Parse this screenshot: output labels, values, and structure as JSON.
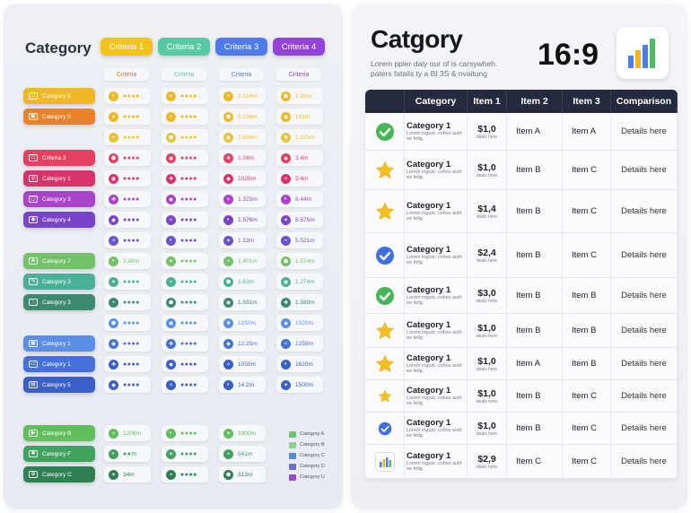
{
  "left": {
    "title": "Category",
    "columns": [
      {
        "label": "Criteria 1",
        "color": "#f2c21f",
        "sub": "Criteria"
      },
      {
        "label": "Criteria 2",
        "color": "#58c9a2",
        "sub": "Criteria"
      },
      {
        "label": "Criteria 3",
        "color": "#4f7be6",
        "sub": "Criteria"
      },
      {
        "label": "Criteria 4",
        "color": "#9145d6",
        "sub": "Criteria"
      }
    ],
    "categories": [
      {
        "label": "Category 5",
        "color": "#f1b825",
        "icon": "□"
      },
      {
        "label": "Category 0",
        "color": "#e8822c",
        "icon": "▣"
      },
      {
        "label": "Criteria 3",
        "color": "#e2425f",
        "icon": "□"
      },
      {
        "label": "Category 1",
        "color": "#d8336a",
        "icon": "◎"
      },
      {
        "label": "Category 3",
        "color": "#a844c8",
        "icon": "▢"
      },
      {
        "label": "Category 4",
        "color": "#7a44c9",
        "icon": "◉"
      },
      {
        "label": "Category 7",
        "color": "#72c267",
        "icon": "♣"
      },
      {
        "label": "Category 3",
        "color": "#4bb196",
        "icon": "✎"
      },
      {
        "label": "Category 3",
        "color": "#3f8a6e",
        "icon": "◌"
      },
      {
        "label": "Category 1",
        "color": "#5b8fe6",
        "icon": "▣"
      },
      {
        "label": "Category 1",
        "color": "#4670da",
        "icon": "▭"
      },
      {
        "label": "Category 5",
        "color": "#3a5fc6",
        "icon": "▤"
      },
      {
        "label": "Category B",
        "color": "#5fbf5a",
        "icon": "▶"
      },
      {
        "label": "Category F",
        "color": "#3fa35f",
        "icon": "✱"
      },
      {
        "label": "Category C",
        "color": "#2f8053",
        "icon": "⊕"
      }
    ],
    "grid_rows": [
      [
        "●●●●",
        "●●●●",
        "2.324m",
        "1.85m"
      ],
      [
        "●●●●",
        "●●●●",
        "3.236m",
        "191m"
      ],
      [
        "●●●●",
        "●●●●",
        "1.566m",
        "1.535m"
      ],
      [
        "●●●●",
        "●●●●",
        "1.04m",
        "3.4m"
      ],
      [
        "●●●●",
        "●●●●",
        "1020m",
        "5.4m"
      ],
      [
        "●●●●",
        "●●●●",
        "1.325m",
        "6.44m"
      ],
      [
        "●●●●",
        "●●●●",
        "1.576m",
        "8.575m"
      ],
      [
        "●●●●",
        "●●●●",
        "1.53m",
        "5.521m"
      ],
      [
        "3.48m",
        "●●●●",
        "1.401m",
        "1.574m"
      ],
      [
        "●●●●",
        "●●●●",
        "1.63m",
        "1.274m"
      ],
      [
        "●●●●",
        "●●●●",
        "1.591m",
        "1.589m"
      ],
      [
        "●●●●",
        "●●●●",
        "1250m",
        "1020m"
      ],
      [
        "●●●●",
        "●●●●",
        "12.25m",
        "1259m"
      ],
      [
        "●●●●",
        "●●●●",
        "1050m",
        "1620m"
      ],
      [
        "●●●●",
        "●●●●",
        "14.2m",
        "1500m"
      ],
      [
        "1208m",
        "●●●●",
        "1800m",
        ""
      ],
      [
        "●●m",
        "●●●●",
        "541m",
        ""
      ],
      [
        "34m",
        "●●●●",
        "313m",
        ""
      ]
    ],
    "legend": [
      {
        "label": "Category A",
        "color": "#6cc277"
      },
      {
        "label": "Category B",
        "color": "#8ed28f"
      },
      {
        "label": "Category C",
        "color": "#4f8ce0"
      },
      {
        "label": "Category D",
        "color": "#6a6fd8"
      },
      {
        "label": "Category U",
        "color": "#9a47d1"
      }
    ]
  },
  "right": {
    "title": "Catgory",
    "subtitle": "Lorem ppler daiy our of is carsywheh. paters fatails ty a BI 3S & nvaitung",
    "ratio": "16:9",
    "chart_icon": "bar-chart-icon",
    "headers": [
      "Category",
      "Item 1",
      "Item 2",
      "Item 3",
      "Comparison"
    ],
    "rows": [
      {
        "icon": "check",
        "cat": "Category 1",
        "desc": "Lorem ingust, cohes auth ee fellg.",
        "price": "$1,0",
        "psub": "deals here",
        "i2": "Item A",
        "i3": "Item A",
        "cmp": "Details here"
      },
      {
        "icon": "star",
        "cat": "Category 1",
        "desc": "Lorem ingust, cohes auth ee fellg.",
        "price": "$1,0",
        "psub": "deals here",
        "i2": "Item B",
        "i3": "Item C",
        "cmp": "Details here"
      },
      {
        "icon": "star",
        "cat": "Category 1",
        "desc": "Lorem ingust, cohes auth ee fellg.",
        "price": "$1,4",
        "psub": "deals here",
        "i2": "Item B",
        "i3": "Item C",
        "cmp": "Details here"
      },
      {
        "icon": "check-blue",
        "cat": "Category 1",
        "desc": "Lorem ingust, cohes auth ee fellg.",
        "price": "$2,4",
        "psub": "deals here",
        "i2": "Item B",
        "i3": "Item C",
        "cmp": "Details here"
      },
      {
        "icon": "check",
        "cat": "Category 1",
        "desc": "Lorem ingust, cohes auth ee fellg.",
        "price": "$3,0",
        "psub": "deals here",
        "i2": "Item B",
        "i3": "Item B",
        "cmp": "Details here"
      },
      {
        "icon": "star",
        "cat": "Category 1",
        "desc": "Lorem ingust, cohes auth ee fellg.",
        "price": "$1,0",
        "psub": "deals here",
        "i2": "Item B",
        "i3": "Item B",
        "cmp": "Details here"
      },
      {
        "icon": "star",
        "cat": "Category 1",
        "desc": "Lorem ingust, cohes auth ee fellg.",
        "price": "$1,0",
        "psub": "deals here",
        "i2": "Item A",
        "i3": "Item B",
        "cmp": "Details here"
      },
      {
        "icon": "star-small",
        "cat": "Category 1",
        "desc": "Lorem ingust, cohes auth ee fellg.",
        "price": "$1,0",
        "psub": "deals here",
        "i2": "Item B",
        "i3": "Item C",
        "cmp": "Details here"
      },
      {
        "icon": "check-blue-small",
        "cat": "Category 1",
        "desc": "Lorem ingust, cohes auth ee fellg.",
        "price": "$1,0",
        "psub": "deals here",
        "i2": "Item B",
        "i3": "Item C",
        "cmp": "Details here"
      },
      {
        "icon": "chart",
        "cat": "Category 1",
        "desc": "Lorem ingust, cohes auth ee fellg.",
        "price": "$2,9",
        "psub": "deals here",
        "i2": "Item C",
        "i3": "Item C",
        "cmp": "Details here"
      }
    ]
  }
}
